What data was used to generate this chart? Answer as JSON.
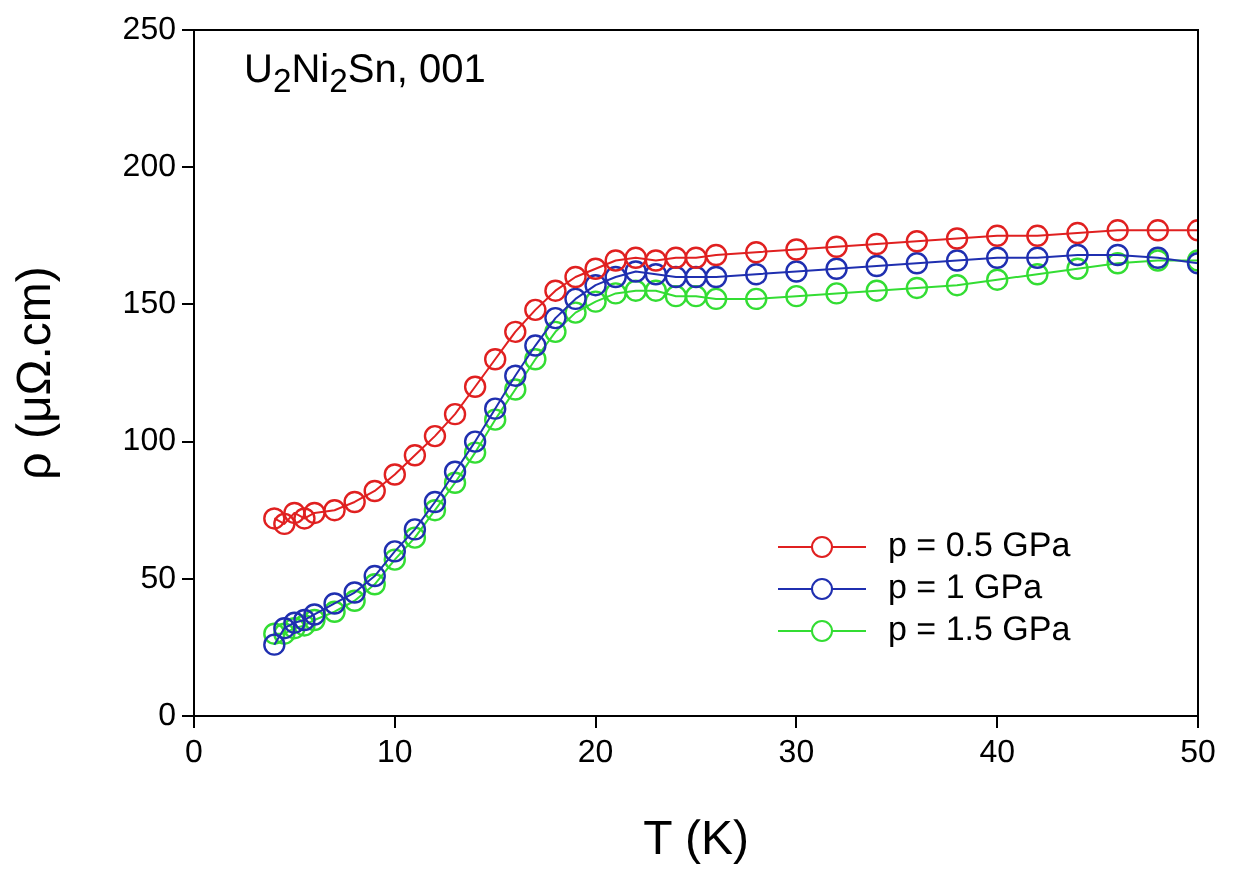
{
  "chart_data": {
    "type": "line",
    "annotations": [
      "U$_{2}$Ni$_{2}$Sn, 001"
    ],
    "xlabel": "T (K)",
    "ylabel": "ρ (μΩ.cm)",
    "x": [
      4,
      4.5,
      5,
      5.5,
      6,
      7,
      8,
      9,
      10,
      11,
      12,
      13,
      14,
      15,
      16,
      17,
      18,
      19,
      20,
      21,
      22,
      23,
      24,
      25,
      26,
      28,
      30,
      32,
      34,
      36,
      38,
      40,
      42,
      44,
      46,
      48,
      50
    ],
    "series": [
      {
        "name": "p = 0.5 GPa",
        "color": "#e02020",
        "values": [
          72,
          70,
          74,
          72,
          74,
          75,
          78,
          82,
          88,
          95,
          102,
          110,
          120,
          130,
          140,
          148,
          155,
          160,
          163,
          166,
          167,
          166,
          167,
          167,
          168,
          169,
          170,
          171,
          172,
          173,
          174,
          175,
          175,
          176,
          177,
          177,
          177
        ]
      },
      {
        "name": "p = 1 GPa",
        "color": "#1f2fb0",
        "values": [
          26,
          32,
          34,
          35,
          37,
          41,
          45,
          51,
          60,
          68,
          78,
          89,
          100,
          112,
          124,
          135,
          145,
          152,
          157,
          160,
          162,
          161,
          160,
          160,
          160,
          161,
          162,
          163,
          164,
          165,
          166,
          167,
          167,
          168,
          168,
          167,
          165
        ]
      },
      {
        "name": "p = 1.5 GPa",
        "color": "#33dd33",
        "values": [
          30,
          30,
          32,
          33,
          35,
          38,
          42,
          48,
          57,
          65,
          75,
          85,
          96,
          108,
          119,
          130,
          140,
          147,
          151,
          154,
          155,
          155,
          153,
          153,
          152,
          152,
          153,
          154,
          155,
          156,
          157,
          159,
          161,
          163,
          165,
          166,
          166
        ]
      }
    ],
    "xlim": [
      0,
      50
    ],
    "xticks": [
      0,
      10,
      20,
      30,
      40,
      50
    ],
    "ylim": [
      0,
      250
    ],
    "yticks": [
      0,
      50,
      100,
      150,
      200,
      250
    ],
    "grid": false,
    "legend": "bottom right",
    "marker": "circle",
    "line_style": "solid"
  }
}
